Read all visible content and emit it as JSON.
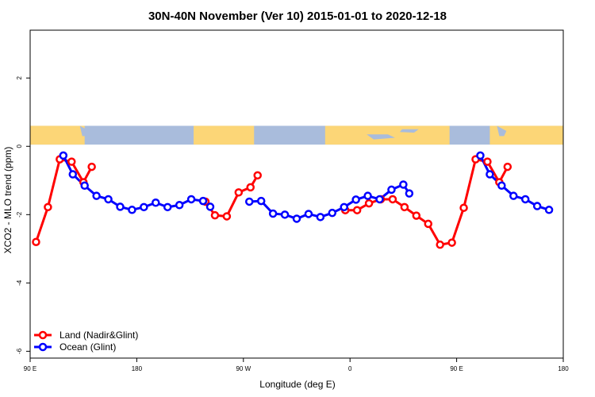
{
  "chart_data": {
    "type": "line",
    "title": "30N-40N November (Ver 10)   2015-01-01 to 2020-12-18",
    "xlabel": "Longitude (deg E)",
    "ylabel": "XCO2 - MLO trend (ppm)",
    "xlim": [
      90,
      540
    ],
    "ylim": [
      -6.2,
      3.4
    ],
    "x_ticks": [
      {
        "value": 90,
        "label": "90 E"
      },
      {
        "value": 180,
        "label": "180"
      },
      {
        "value": 270,
        "label": "90 W"
      },
      {
        "value": 360,
        "label": "0"
      },
      {
        "value": 450,
        "label": "90 E"
      },
      {
        "value": 540,
        "label": "180"
      }
    ],
    "y_ticks": [
      {
        "value": 2,
        "label": "2"
      },
      {
        "value": 0,
        "label": "0"
      },
      {
        "value": -2,
        "label": "-2"
      },
      {
        "value": -4,
        "label": "-4"
      },
      {
        "value": -6,
        "label": "-6"
      }
    ],
    "map_band": {
      "ymin": 0.05,
      "ymax": 0.6,
      "land_color": "#fcd677",
      "ocean_color": "#a9bcdc"
    },
    "legend_position": "bottom-left",
    "series": [
      {
        "name": "Land (Nadir&Glint)",
        "color": "#ff0000",
        "segments": [
          [
            [
              95,
              -2.8
            ],
            [
              105,
              -1.78
            ],
            [
              115,
              -0.38
            ],
            [
              125,
              -0.45
            ],
            [
              135,
              -1.05
            ],
            [
              142,
              -0.6
            ]
          ],
          [
            [
              238,
              -1.62
            ],
            [
              246,
              -2.02
            ],
            [
              256,
              -2.05
            ],
            [
              266,
              -1.35
            ],
            [
              276,
              -1.2
            ],
            [
              282,
              -0.85
            ]
          ],
          [
            [
              356,
              -1.87
            ],
            [
              366,
              -1.87
            ],
            [
              376,
              -1.67
            ],
            [
              386,
              -1.55
            ],
            [
              396,
              -1.55
            ],
            [
              406,
              -1.78
            ],
            [
              416,
              -2.03
            ],
            [
              426,
              -2.27
            ],
            [
              436,
              -2.88
            ],
            [
              446,
              -2.82
            ],
            [
              456,
              -1.8
            ],
            [
              466,
              -0.38
            ],
            [
              476,
              -0.45
            ],
            [
              486,
              -1.05
            ],
            [
              493,
              -0.6
            ]
          ]
        ]
      },
      {
        "name": "Ocean (Glint)",
        "color": "#0000ff",
        "segments": [
          [
            [
              118,
              -0.27
            ],
            [
              126,
              -0.82
            ],
            [
              136,
              -1.15
            ],
            [
              146,
              -1.45
            ],
            [
              156,
              -1.55
            ],
            [
              166,
              -1.77
            ],
            [
              176,
              -1.86
            ],
            [
              186,
              -1.78
            ],
            [
              196,
              -1.65
            ],
            [
              206,
              -1.78
            ],
            [
              216,
              -1.72
            ],
            [
              226,
              -1.55
            ],
            [
              236,
              -1.6
            ],
            [
              242,
              -1.77
            ]
          ],
          [
            [
              275,
              -1.62
            ],
            [
              285,
              -1.6
            ],
            [
              295,
              -1.97
            ],
            [
              305,
              -2.0
            ],
            [
              315,
              -2.12
            ],
            [
              325,
              -1.98
            ],
            [
              335,
              -2.07
            ],
            [
              345,
              -1.95
            ],
            [
              355,
              -1.78
            ],
            [
              365,
              -1.56
            ],
            [
              375,
              -1.45
            ],
            [
              385,
              -1.55
            ],
            [
              395,
              -1.27
            ],
            [
              405,
              -1.12
            ],
            [
              410,
              -1.38
            ]
          ],
          [
            [
              470,
              -0.27
            ],
            [
              478,
              -0.82
            ],
            [
              488,
              -1.15
            ],
            [
              498,
              -1.45
            ],
            [
              508,
              -1.55
            ],
            [
              518,
              -1.75
            ],
            [
              528,
              -1.86
            ]
          ]
        ]
      }
    ]
  }
}
